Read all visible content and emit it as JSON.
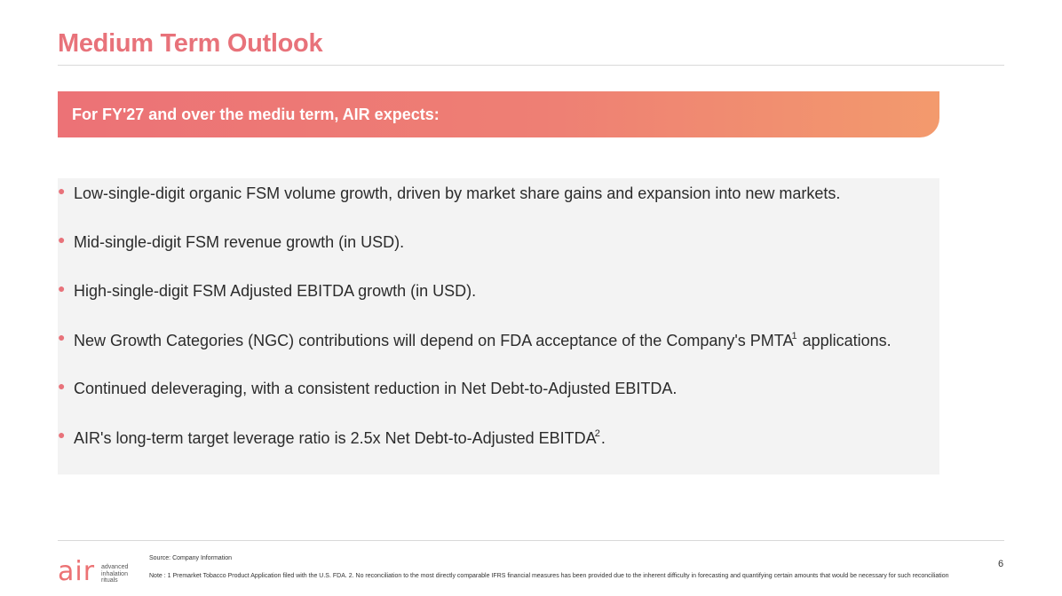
{
  "header": {
    "title": "Medium Term Outlook"
  },
  "banner": {
    "text": "For FY'27 and over the mediu term, AIR expects:"
  },
  "bullets": [
    {
      "text": "Low-single-digit organic FSM volume growth, driven by market share gains and expansion into new markets."
    },
    {
      "text": "Mid-single-digit FSM revenue growth (in USD)."
    },
    {
      "text": "High-single-digit FSM Adjusted EBITDA growth (in USD)."
    },
    {
      "text_before": "New Growth Categories (NGC) contributions will depend on FDA acceptance of the Company's PMTA",
      "footnote": "1",
      "text_after": " applications."
    },
    {
      "text": "Continued deleveraging, with a consistent reduction in Net Debt-to-Adjusted EBITDA."
    },
    {
      "text_before": "AIR's long-term target leverage ratio is 2.5x Net Debt-to-Adjusted EBITDA",
      "footnote": "2",
      "text_after": "."
    }
  ],
  "footer": {
    "logo_word": "air",
    "logo_lines": [
      "advanced",
      "inhalation",
      "rituals"
    ],
    "source": "Source: Company Information",
    "note": "Note : 1 Premarket Tobacco Product Application filed with the U.S. FDA. 2. No reconciliation to the most directly comparable IFRS financial measures has been provided due to the inherent difficulty in forecasting and quantifying certain amounts that would be necessary for such reconciliation",
    "page_number": "6"
  },
  "colors": {
    "accent": "#e8727a",
    "banner_start": "#ec7276",
    "banner_end": "#f39a6d",
    "panel_bg": "#f3f3f3"
  }
}
